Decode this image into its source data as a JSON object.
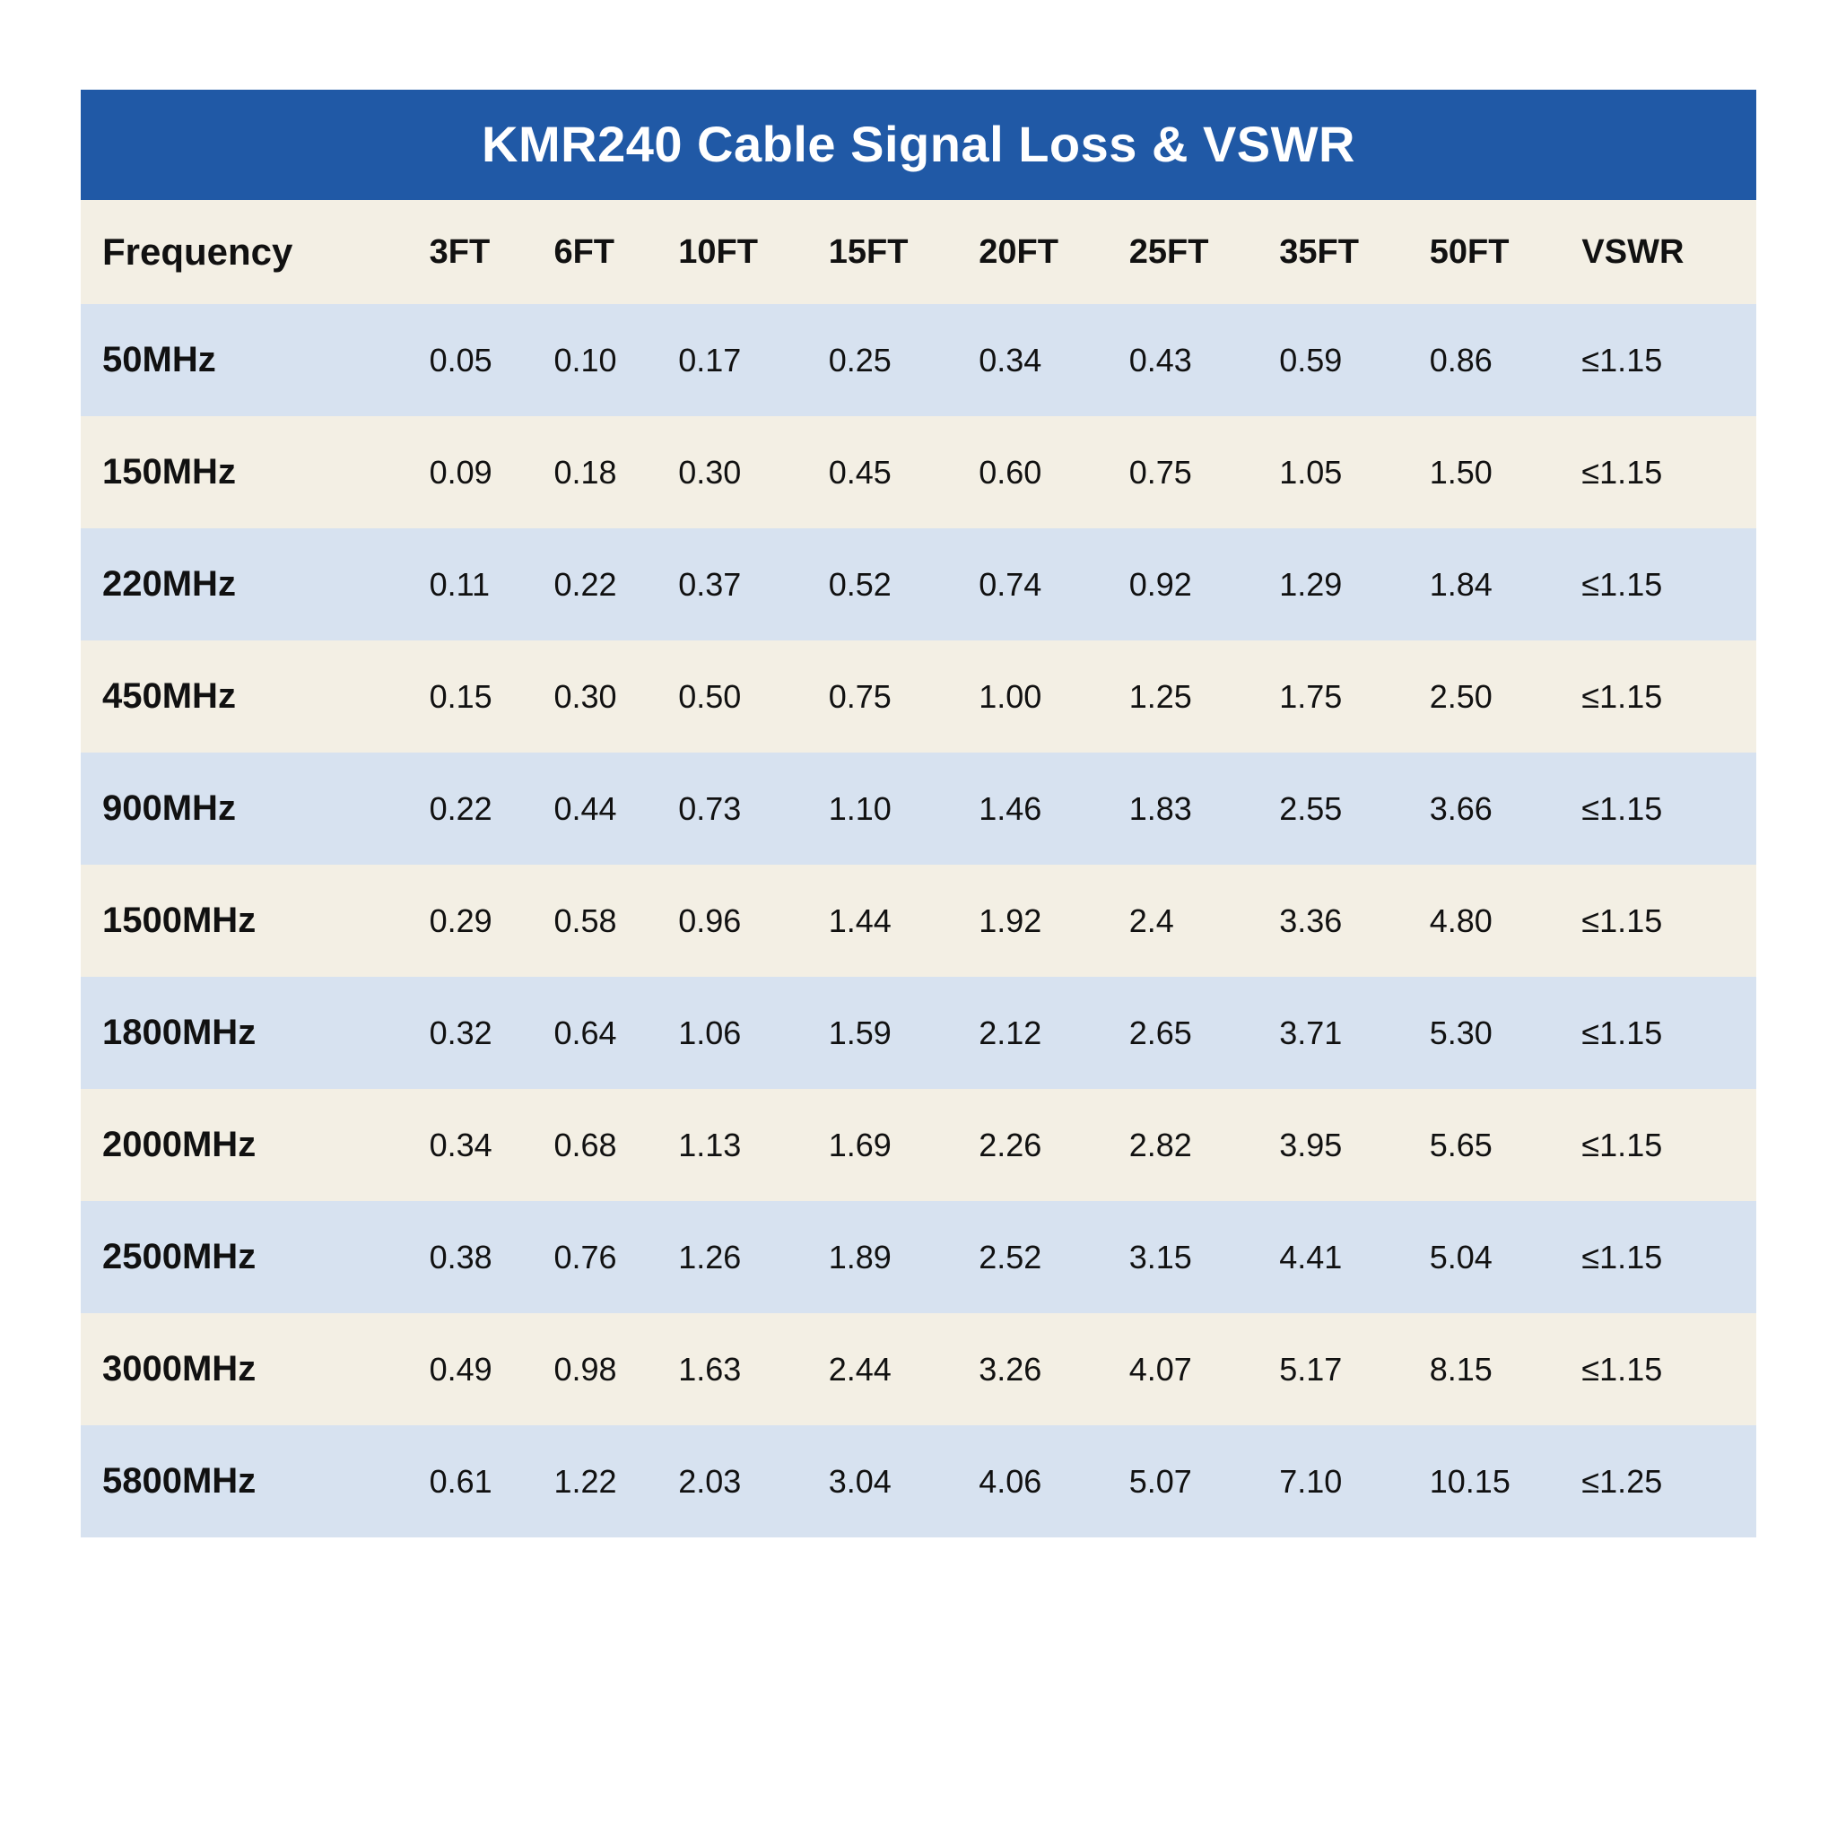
{
  "title": "KMR240 Cable Signal Loss & VSWR",
  "colors": {
    "header_bg": "#2059a6",
    "header_text": "#ffffff",
    "row_alt_a": "#d7e2f0",
    "row_alt_b": "#f3efe4",
    "text": "#111111"
  },
  "table": {
    "columns": [
      "Frequency",
      "3FT",
      "6FT",
      "10FT",
      "15FT",
      "20FT",
      "25FT",
      "35FT",
      "50FT",
      "VSWR"
    ],
    "rows": [
      {
        "freq": "50MHz",
        "c": [
          "0.05",
          "0.10",
          "0.17",
          "0.25",
          "0.34",
          "0.43",
          "0.59",
          "0.86",
          "≤1.15"
        ]
      },
      {
        "freq": "150MHz",
        "c": [
          "0.09",
          "0.18",
          "0.30",
          "0.45",
          "0.60",
          "0.75",
          "1.05",
          "1.50",
          "≤1.15"
        ]
      },
      {
        "freq": "220MHz",
        "c": [
          "0.11",
          "0.22",
          "0.37",
          "0.52",
          "0.74",
          "0.92",
          "1.29",
          "1.84",
          "≤1.15"
        ]
      },
      {
        "freq": "450MHz",
        "c": [
          "0.15",
          "0.30",
          "0.50",
          "0.75",
          "1.00",
          "1.25",
          "1.75",
          "2.50",
          "≤1.15"
        ]
      },
      {
        "freq": "900MHz",
        "c": [
          "0.22",
          "0.44",
          "0.73",
          "1.10",
          "1.46",
          "1.83",
          "2.55",
          "3.66",
          "≤1.15"
        ]
      },
      {
        "freq": "1500MHz",
        "c": [
          "0.29",
          "0.58",
          "0.96",
          "1.44",
          "1.92",
          "2.4",
          "3.36",
          "4.80",
          "≤1.15"
        ]
      },
      {
        "freq": "1800MHz",
        "c": [
          "0.32",
          "0.64",
          "1.06",
          "1.59",
          "2.12",
          "2.65",
          "3.71",
          "5.30",
          "≤1.15"
        ]
      },
      {
        "freq": "2000MHz",
        "c": [
          "0.34",
          "0.68",
          "1.13",
          "1.69",
          "2.26",
          "2.82",
          "3.95",
          "5.65",
          "≤1.15"
        ]
      },
      {
        "freq": "2500MHz",
        "c": [
          "0.38",
          "0.76",
          "1.26",
          "1.89",
          "2.52",
          "3.15",
          "4.41",
          "5.04",
          "≤1.15"
        ]
      },
      {
        "freq": "3000MHz",
        "c": [
          "0.49",
          "0.98",
          "1.63",
          "2.44",
          "3.26",
          "4.07",
          "5.17",
          "8.15",
          "≤1.15"
        ]
      },
      {
        "freq": "5800MHz",
        "c": [
          "0.61",
          "1.22",
          "2.03",
          "3.04",
          "4.06",
          "5.07",
          "7.10",
          "10.15",
          "≤1.25"
        ]
      }
    ]
  }
}
